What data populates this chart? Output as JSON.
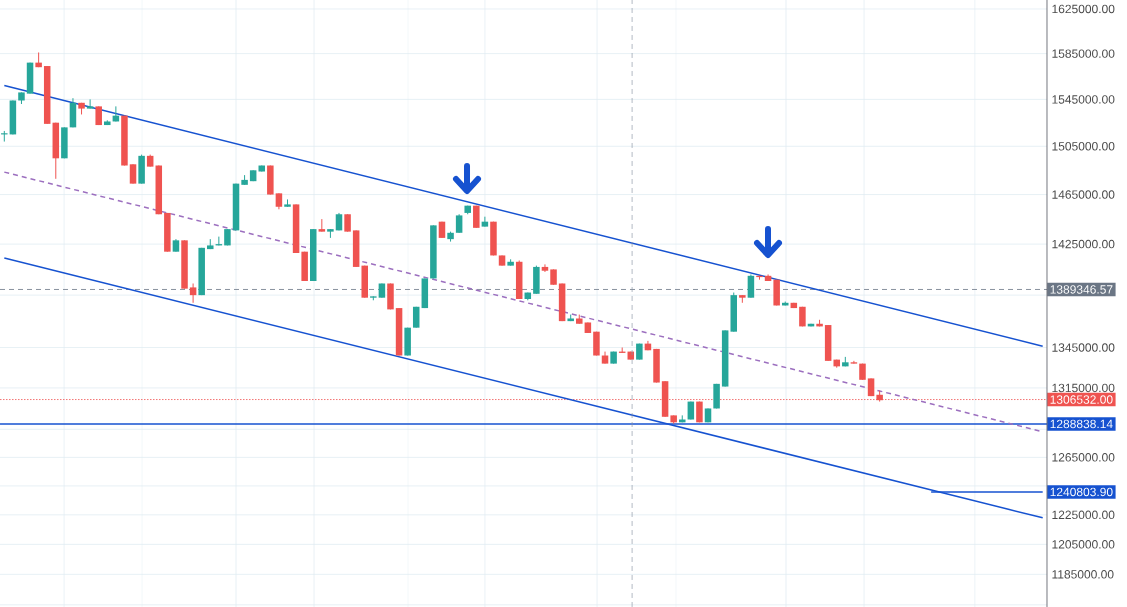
{
  "chart_data": {
    "type": "candlestick",
    "categories": [
      null,
      null,
      null,
      null,
      null,
      null,
      null,
      null,
      null,
      null,
      null,
      null,
      null,
      null,
      null,
      null,
      null,
      null,
      null,
      null,
      null,
      null,
      null,
      null,
      null,
      null,
      null,
      null,
      null,
      null,
      null,
      null,
      null,
      null,
      null,
      null,
      null,
      null,
      null,
      null,
      null,
      null,
      null,
      null,
      null,
      null,
      null,
      null,
      null,
      null,
      null,
      null,
      null,
      null,
      null,
      null,
      null,
      null,
      null,
      null,
      null,
      null,
      null,
      null,
      null,
      null,
      null,
      null,
      null,
      null,
      null,
      null,
      null,
      null,
      null,
      null,
      null,
      null,
      null,
      null,
      null,
      null,
      null,
      null,
      null,
      null,
      null,
      null,
      null,
      null,
      null,
      null,
      null,
      null,
      null,
      null,
      null,
      null,
      null,
      null,
      null,
      null,
      null,
      null,
      null,
      null,
      null,
      null,
      null,
      null,
      null,
      null,
      null,
      null,
      null,
      null,
      null,
      null,
      null,
      null,
      null,
      null
    ],
    "ohlc": [
      [
        1515000,
        1518000,
        1509000,
        1516000
      ],
      [
        1515000,
        1544000,
        1515000,
        1544000
      ],
      [
        1544000,
        1551000,
        1541000,
        1551000
      ],
      [
        1550000,
        1577000,
        1550000,
        1577000
      ],
      [
        1577000,
        1586000,
        1573000,
        1573000
      ],
      [
        1574000,
        1574000,
        1524000,
        1524000
      ],
      [
        1525000,
        1525000,
        1478000,
        1495000
      ],
      [
        1495000,
        1521000,
        1495000,
        1521000
      ],
      [
        1521000,
        1546000,
        1521000,
        1542000
      ],
      [
        1542000,
        1542000,
        1532000,
        1537000
      ],
      [
        1537000,
        1545000,
        1537000,
        1539000
      ],
      [
        1539000,
        1539000,
        1523000,
        1523000
      ],
      [
        1523000,
        1527000,
        1523000,
        1526000
      ],
      [
        1526000,
        1539000,
        1526000,
        1531000
      ],
      [
        1531000,
        1531000,
        1489000,
        1489000
      ],
      [
        1490000,
        1490000,
        1474000,
        1474000
      ],
      [
        1474000,
        1498000,
        1474000,
        1497000
      ],
      [
        1497000,
        1498000,
        1488000,
        1488000
      ],
      [
        1489000,
        1489000,
        1449000,
        1449000
      ],
      [
        1450000,
        1450000,
        1419000,
        1419000
      ],
      [
        1419000,
        1429000,
        1419000,
        1428000
      ],
      [
        1428000,
        1428000,
        1390000,
        1390000
      ],
      [
        1391000,
        1394000,
        1379000,
        1385000
      ],
      [
        1385000,
        1422000,
        1385000,
        1422000
      ],
      [
        1421000,
        1429000,
        1421000,
        1424000
      ],
      [
        1424000,
        1431000,
        1424000,
        1425000
      ],
      [
        1424000,
        1437000,
        1424000,
        1437000
      ],
      [
        1436000,
        1474000,
        1436000,
        1474000
      ],
      [
        1473000,
        1481000,
        1473000,
        1477000
      ],
      [
        1476000,
        1485000,
        1476000,
        1485000
      ],
      [
        1484000,
        1489000,
        1484000,
        1489000
      ],
      [
        1489000,
        1489000,
        1465000,
        1465000
      ],
      [
        1466000,
        1466000,
        1453000,
        1455000
      ],
      [
        1455000,
        1461000,
        1455000,
        1457000
      ],
      [
        1457000,
        1457000,
        1418000,
        1418000
      ],
      [
        1419000,
        1419000,
        1396000,
        1396000
      ],
      [
        1396000,
        1437000,
        1396000,
        1437000
      ],
      [
        1437000,
        1445000,
        1435000,
        1435000
      ],
      [
        1435000,
        1437000,
        1430000,
        1437000
      ],
      [
        1436000,
        1450000,
        1436000,
        1449000
      ],
      [
        1449000,
        1449000,
        1435000,
        1435000
      ],
      [
        1436000,
        1436000,
        1407000,
        1407000
      ],
      [
        1408000,
        1408000,
        1383000,
        1383000
      ],
      [
        1383000,
        1384000,
        1381000,
        1384000
      ],
      [
        1383000,
        1394000,
        1383000,
        1394000
      ],
      [
        1394000,
        1394000,
        1374000,
        1374000
      ],
      [
        1375000,
        1375000,
        1339000,
        1339000
      ],
      [
        1339000,
        1360000,
        1339000,
        1360000
      ],
      [
        1360000,
        1376000,
        1360000,
        1376000
      ],
      [
        1375000,
        1398000,
        1375000,
        1398000
      ],
      [
        1398000,
        1440000,
        1398000,
        1440000
      ],
      [
        1443000,
        1443000,
        1430000,
        1430000
      ],
      [
        1429000,
        1435000,
        1427000,
        1434000
      ],
      [
        1434000,
        1449000,
        1434000,
        1448000
      ],
      [
        1450000,
        1456000,
        1449000,
        1456000
      ],
      [
        1456000,
        1456000,
        1438000,
        1438000
      ],
      [
        1439000,
        1447000,
        1439000,
        1443000
      ],
      [
        1443000,
        1443000,
        1416000,
        1416000
      ],
      [
        1416000,
        1416000,
        1408000,
        1408000
      ],
      [
        1408000,
        1413000,
        1408000,
        1411000
      ],
      [
        1411000,
        1412000,
        1382000,
        1382000
      ],
      [
        1382000,
        1387000,
        1381000,
        1387000
      ],
      [
        1386000,
        1408000,
        1386000,
        1407000
      ],
      [
        1407000,
        1409000,
        1403000,
        1404000
      ],
      [
        1405000,
        1405000,
        1393000,
        1393000
      ],
      [
        1394000,
        1394000,
        1365000,
        1365000
      ],
      [
        1365000,
        1370000,
        1365000,
        1367000
      ],
      [
        1367000,
        1370000,
        1363000,
        1363000
      ],
      [
        1364000,
        1364000,
        1356000,
        1356000
      ],
      [
        1357000,
        1357000,
        1339000,
        1339000
      ],
      [
        1339000,
        1342000,
        1333000,
        1333000
      ],
      [
        1333000,
        1342000,
        1333000,
        1342000
      ],
      [
        1342000,
        1345000,
        1341000,
        1341000
      ],
      [
        1342000,
        1342000,
        1336000,
        1336000
      ],
      [
        1336000,
        1348000,
        1336000,
        1348000
      ],
      [
        1348000,
        1350000,
        1343000,
        1343000
      ],
      [
        1344000,
        1344000,
        1319000,
        1319000
      ],
      [
        1320000,
        1320000,
        1294000,
        1294000
      ],
      [
        1295000,
        1295000,
        1289000,
        1290000
      ],
      [
        1290000,
        1295000,
        1290000,
        1292000
      ],
      [
        1292000,
        1305000,
        1292000,
        1305000
      ],
      [
        1305000,
        1305000,
        1290000,
        1290000
      ],
      [
        1290000,
        1300000,
        1290000,
        1300000
      ],
      [
        1300000,
        1318000,
        1300000,
        1318000
      ],
      [
        1316000,
        1358000,
        1316000,
        1358000
      ],
      [
        1357000,
        1387000,
        1357000,
        1385000
      ],
      [
        1385000,
        1385000,
        1379000,
        1383000
      ],
      [
        1383000,
        1401000,
        1383000,
        1400000
      ],
      [
        1400000,
        1400000,
        1397000,
        1399000
      ],
      [
        1400000,
        1401000,
        1396000,
        1396000
      ],
      [
        1397000,
        1397000,
        1377000,
        1377000
      ],
      [
        1377000,
        1380000,
        1377000,
        1379000
      ],
      [
        1379000,
        1379000,
        1375000,
        1375000
      ],
      [
        1376000,
        1376000,
        1361000,
        1361000
      ],
      [
        1361000,
        1363000,
        1361000,
        1363000
      ],
      [
        1363000,
        1366000,
        1361000,
        1361000
      ],
      [
        1362000,
        1362000,
        1335000,
        1335000
      ],
      [
        1336000,
        1336000,
        1330000,
        1331000
      ],
      [
        1331000,
        1338000,
        1331000,
        1334000
      ],
      [
        1334000,
        1335000,
        1333000,
        1333000
      ],
      [
        1333000,
        1333000,
        1321000,
        1321000
      ],
      [
        1322000,
        1322000,
        1309000,
        1309000
      ],
      [
        1310000,
        1313000,
        1305000,
        1306000
      ],
      null,
      null,
      null,
      null,
      null,
      null,
      null,
      null,
      null,
      null,
      null,
      null,
      null,
      null,
      null,
      null,
      null,
      null,
      null
    ],
    "series": [
      {
        "type": "line",
        "values": [
          1557000,
          null,
          null,
          null,
          null,
          null,
          null,
          null,
          null,
          null,
          null,
          null,
          null,
          null,
          null,
          null,
          null,
          null,
          null,
          null,
          null,
          null,
          null,
          null,
          null,
          null,
          null,
          null,
          null,
          null,
          null,
          null,
          null,
          null,
          null,
          null,
          null,
          null,
          null,
          null,
          null,
          null,
          null,
          null,
          null,
          null,
          null,
          null,
          null,
          null,
          null,
          null,
          null,
          null,
          null,
          null,
          null,
          null,
          null,
          null,
          null,
          null,
          null,
          null,
          null,
          null,
          null,
          null,
          null,
          null,
          null,
          null,
          null,
          null,
          null,
          null,
          null,
          null,
          null,
          null,
          null,
          null,
          null,
          null,
          null,
          null,
          null,
          null,
          null,
          null,
          null,
          null,
          null,
          null,
          null,
          null,
          null,
          null,
          null,
          null,
          null,
          null,
          null,
          null,
          null,
          null,
          null,
          null,
          null,
          null,
          null,
          null,
          null,
          null,
          null,
          null,
          null,
          null,
          null,
          null,
          null,
          1346000
        ],
        "color": "#1652d0"
      },
      {
        "type": "line",
        "values": [
          1414000,
          null,
          null,
          null,
          null,
          null,
          null,
          null,
          null,
          null,
          null,
          null,
          null,
          null,
          null,
          null,
          null,
          null,
          null,
          null,
          null,
          null,
          null,
          null,
          null,
          null,
          null,
          null,
          null,
          null,
          null,
          null,
          null,
          null,
          null,
          null,
          null,
          null,
          null,
          null,
          null,
          null,
          null,
          null,
          null,
          null,
          null,
          null,
          null,
          null,
          null,
          null,
          null,
          null,
          null,
          null,
          null,
          null,
          null,
          null,
          null,
          null,
          null,
          null,
          null,
          null,
          null,
          null,
          null,
          null,
          null,
          null,
          null,
          null,
          null,
          null,
          null,
          null,
          null,
          null,
          null,
          null,
          null,
          null,
          null,
          null,
          null,
          null,
          null,
          null,
          null,
          null,
          null,
          null,
          null,
          null,
          null,
          null,
          null,
          null,
          null,
          null,
          null,
          null,
          null,
          null,
          null,
          null,
          null,
          null,
          null,
          null,
          null,
          null,
          null,
          null,
          null,
          null,
          null,
          null,
          null,
          1223000
        ],
        "color": "#1652d0"
      },
      {
        "type": "line",
        "values": [
          1483500,
          null,
          null,
          null,
          null,
          null,
          null,
          null,
          null,
          null,
          null,
          null,
          null,
          null,
          null,
          null,
          null,
          null,
          null,
          null,
          null,
          null,
          null,
          null,
          null,
          null,
          null,
          null,
          null,
          null,
          null,
          null,
          null,
          null,
          null,
          null,
          null,
          null,
          null,
          null,
          null,
          null,
          null,
          null,
          null,
          null,
          null,
          null,
          null,
          null,
          null,
          null,
          null,
          null,
          null,
          null,
          null,
          null,
          null,
          null,
          null,
          null,
          null,
          null,
          null,
          null,
          null,
          null,
          null,
          null,
          null,
          null,
          null,
          null,
          null,
          null,
          null,
          null,
          null,
          null,
          null,
          null,
          null,
          null,
          null,
          null,
          null,
          null,
          null,
          null,
          null,
          null,
          null,
          null,
          null,
          null,
          null,
          null,
          null,
          null,
          null,
          null,
          null,
          null,
          null,
          null,
          null,
          null,
          null,
          null,
          null,
          null,
          null,
          null,
          null,
          null,
          null,
          null,
          null,
          null,
          null,
          1283200
        ],
        "color": "#9c6fbf",
        "line_style": "dashed"
      },
      {
        "type": "line",
        "values": [
          null,
          null,
          null,
          null,
          null,
          null,
          null,
          null,
          null,
          null,
          null,
          null,
          null,
          null,
          null,
          null,
          null,
          null,
          null,
          null,
          null,
          null,
          null,
          null,
          null,
          null,
          null,
          null,
          null,
          null,
          null,
          null,
          null,
          null,
          null,
          null,
          null,
          null,
          null,
          null,
          null,
          null,
          null,
          null,
          null,
          null,
          null,
          null,
          null,
          null,
          null,
          null,
          null,
          null,
          null,
          null,
          null,
          null,
          null,
          null,
          null,
          null,
          null,
          null,
          null,
          null,
          null,
          null,
          null,
          null,
          null,
          null,
          null,
          null,
          null,
          null,
          null,
          null,
          null,
          null,
          null,
          null,
          null,
          null,
          null,
          null,
          null,
          null,
          null,
          null,
          null,
          null,
          null,
          null,
          null,
          null,
          null,
          null,
          null,
          null,
          null,
          null,
          null,
          null,
          null,
          null,
          null,
          null,
          1240803.9,
          null,
          null,
          null,
          null,
          null,
          null,
          null,
          null,
          null,
          null,
          null,
          null,
          1240803.9
        ],
        "color": "#1652d0"
      }
    ],
    "annotations": [
      "1240803.90"
    ],
    "ref_lines": [
      {
        "axis": "y",
        "value": 1389346.57,
        "label": "1389346.57",
        "color": "#6b7685",
        "line_style": "dashed"
      },
      {
        "axis": "y",
        "value": 1306532.0,
        "label": "1306532.00",
        "color": "#ef5350",
        "line_style": "dotted"
      },
      {
        "axis": "y",
        "value": 1288838.14,
        "label": "1288838.14",
        "color": "#1652d0",
        "line_style": "solid"
      }
    ],
    "ylim": [
      1163600,
      1633200
    ],
    "yticks": [
      {
        "value": 1165000,
        "label": null
      },
      {
        "value": 1185000,
        "label": "1185000.00"
      },
      {
        "value": 1205000,
        "label": "1205000.00"
      },
      {
        "value": 1225000,
        "label": "1225000.00"
      },
      {
        "value": 1245000,
        "label": null
      },
      {
        "value": 1265000,
        "label": "1265000.00"
      },
      {
        "value": 1285000,
        "label": null
      },
      {
        "value": 1315000,
        "label": "1315000.00"
      },
      {
        "value": 1345000,
        "label": "1345000.00"
      },
      {
        "value": 1385000,
        "label": null
      },
      {
        "value": 1425000,
        "label": "1425000.00"
      },
      {
        "value": 1465000,
        "label": "1465000.00"
      },
      {
        "value": 1505000,
        "label": "1505000.00"
      },
      {
        "value": 1545000,
        "label": "1545000.00"
      },
      {
        "value": 1585000,
        "label": "1585000.00"
      },
      {
        "value": 1625000,
        "label": "1625000.00"
      }
    ],
    "log": "y",
    "grid": true,
    "tick_labels": "y"
  }
}
